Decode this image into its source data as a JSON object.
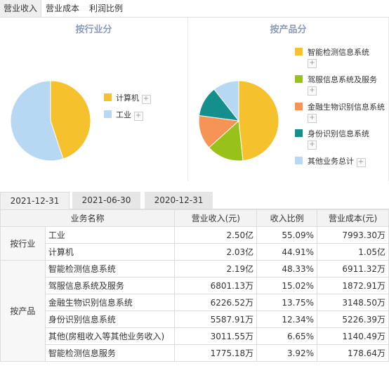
{
  "top_tabs": [
    "营业收入",
    "营业成本",
    "利润比例"
  ],
  "colors": {
    "yellow": "#f5c12c",
    "lightblue": "#b7d8f3",
    "green": "#98c11a",
    "orange": "#f59455",
    "teal": "#13908c"
  },
  "panel_industry": {
    "title": "按行业分",
    "legend": [
      {
        "label": "计算机",
        "color": "#f5c12c"
      },
      {
        "label": "工业",
        "color": "#b7d8f3"
      }
    ],
    "shares": [
      44.91,
      55.09
    ]
  },
  "panel_product": {
    "title": "按产品分",
    "legend": [
      {
        "label": "智能检测信息系统",
        "color": "#f5c12c"
      },
      {
        "label": "驾服信息系统及服务",
        "color": "#98c11a"
      },
      {
        "label": "金融生物识别信息系统",
        "color": "#f59455"
      },
      {
        "label": "身份识别信息系统",
        "color": "#13908c"
      },
      {
        "label": "其他业务总计",
        "color": "#b7d8f3"
      }
    ],
    "shares": [
      48.33,
      15.02,
      13.75,
      12.34,
      10.56
    ]
  },
  "plus": "+",
  "date_tabs": [
    "2021-12-31",
    "2021-06-30",
    "2020-12-31"
  ],
  "table": {
    "headers": [
      "业务名称",
      "营业收入(元)",
      "收入比例",
      "营业成本(元)"
    ],
    "groups": [
      {
        "name": "按行业",
        "rows": [
          {
            "name": "工业",
            "revenue": "2.50亿",
            "ratio": "55.09%",
            "cost": "7993.30万"
          },
          {
            "name": "计算机",
            "revenue": "2.03亿",
            "ratio": "44.91%",
            "cost": "1.05亿"
          }
        ]
      },
      {
        "name": "按产品",
        "rows": [
          {
            "name": "智能检测信息系统",
            "revenue": "2.19亿",
            "ratio": "48.33%",
            "cost": "6911.32万"
          },
          {
            "name": "驾服信息系统及服务",
            "revenue": "6801.13万",
            "ratio": "15.02%",
            "cost": "1872.91万"
          },
          {
            "name": "金融生物识别信息系统",
            "revenue": "6226.52万",
            "ratio": "13.75%",
            "cost": "3148.50万"
          },
          {
            "name": "身份识别信息系统",
            "revenue": "5587.91万",
            "ratio": "12.34%",
            "cost": "5226.39万"
          },
          {
            "name": "其他(房租收入等其他业务收入)",
            "revenue": "3011.55万",
            "ratio": "6.65%",
            "cost": "1140.49万"
          },
          {
            "name": "智能检测信息服务",
            "revenue": "1775.18万",
            "ratio": "3.92%",
            "cost": "178.64万"
          }
        ]
      }
    ]
  }
}
